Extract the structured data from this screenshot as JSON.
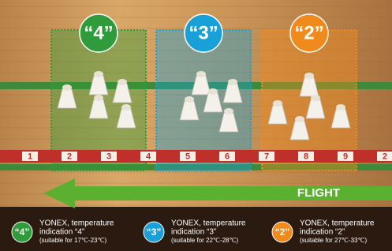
{
  "zones": [
    {
      "badge": "“4”"
    },
    {
      "badge": "“3”"
    },
    {
      "badge": "“2”"
    }
  ],
  "ruler": [
    "1",
    "2",
    "3",
    "4",
    "5",
    "6",
    "7",
    "8",
    "9",
    "2"
  ],
  "arrow_label": "FLIGHT",
  "legend": [
    {
      "badge": "“4”",
      "line1": "YONEX, temperature",
      "line2": "indication “4”",
      "line3": "(suitable for 17℃-23℃)"
    },
    {
      "badge": "“3”",
      "line1": "YONEX, temperature",
      "line2": "indication “3”",
      "line3": "(suitable for 22℃-28℃)"
    },
    {
      "badge": "“2”",
      "line1": "YONEX, temperature",
      "line2": "indication “2”",
      "line3": "(suitable for 27℃-33℃)"
    }
  ]
}
